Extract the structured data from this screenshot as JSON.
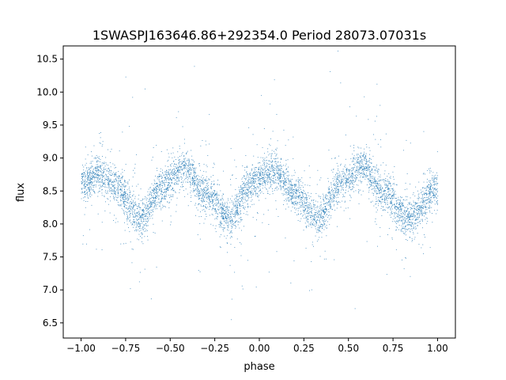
{
  "chart_data": {
    "type": "scatter",
    "title": "1SWASPJ163646.86+292354.0 Period 28073.07031s",
    "xlabel": "phase",
    "ylabel": "flux",
    "xlim": [
      -1.1,
      1.1
    ],
    "ylim": [
      6.27,
      10.7
    ],
    "xticks": [
      -1.0,
      -0.75,
      -0.5,
      -0.25,
      0.0,
      0.25,
      0.5,
      0.75,
      1.0
    ],
    "xtick_labels": [
      "−1.00",
      "−0.75",
      "−0.50",
      "−0.25",
      "0.00",
      "0.25",
      "0.50",
      "0.75",
      "1.00"
    ],
    "yticks": [
      6.5,
      7.0,
      7.5,
      8.0,
      8.5,
      9.0,
      9.5,
      10.0,
      10.5
    ],
    "ytick_labels": [
      "6.5",
      "7.0",
      "7.5",
      "8.0",
      "8.5",
      "9.0",
      "9.5",
      "10.0",
      "10.5"
    ],
    "grid": false,
    "point_color": "#1f77b4",
    "series": [
      {
        "description_points": [
          {
            "x": -1.0,
            "y": 8.6
          },
          {
            "x": -0.9,
            "y": 8.78
          },
          {
            "x": -0.8,
            "y": 8.55
          },
          {
            "x": -0.67,
            "y": 8.1
          },
          {
            "x": -0.55,
            "y": 8.55
          },
          {
            "x": -0.42,
            "y": 8.85
          },
          {
            "x": -0.3,
            "y": 8.45
          },
          {
            "x": -0.17,
            "y": 8.1
          },
          {
            "x": -0.05,
            "y": 8.6
          },
          {
            "x": 0.08,
            "y": 8.8
          },
          {
            "x": 0.2,
            "y": 8.45
          },
          {
            "x": 0.33,
            "y": 8.1
          },
          {
            "x": 0.45,
            "y": 8.6
          },
          {
            "x": 0.58,
            "y": 8.85
          },
          {
            "x": 0.7,
            "y": 8.45
          },
          {
            "x": 0.83,
            "y": 8.1
          },
          {
            "x": 1.0,
            "y": 8.55
          }
        ]
      }
    ]
  }
}
